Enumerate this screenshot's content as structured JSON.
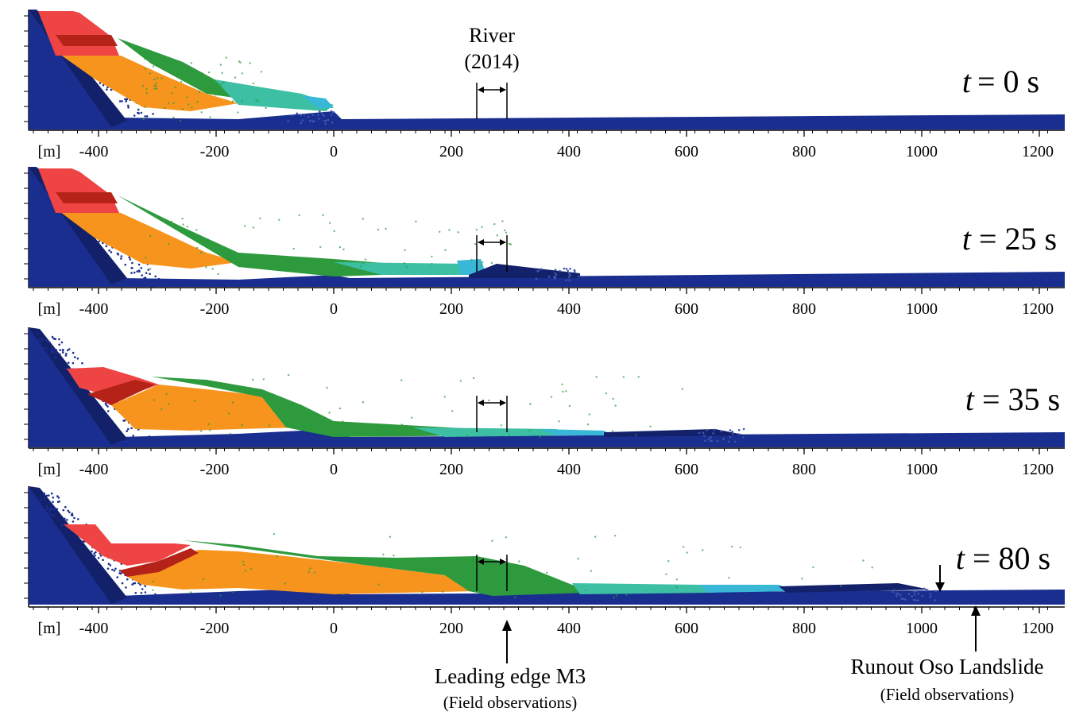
{
  "colors": {
    "base": "#1a2e8f",
    "base_dark": "#13216b",
    "red": "#ee4444",
    "dark_red": "#b52318",
    "red_orange": "#de3c1e",
    "orange": "#f7941d",
    "yellow": "#ecec3a",
    "green": "#2e9a3e",
    "teal": "#3cbfa3",
    "cyan": "#38b8d6",
    "mid_blue": "#3d55b0"
  },
  "axis": {
    "unit_label": "[m]",
    "ticks": [
      "-400",
      "-200",
      "0",
      "200",
      "400",
      "600",
      "800",
      "1000",
      "1200"
    ]
  },
  "panels": [
    {
      "time_label": "t",
      "time_value": "= 0 s"
    },
    {
      "time_label": "t",
      "time_value": "= 25 s"
    },
    {
      "time_label": "t",
      "time_value": "= 35 s"
    },
    {
      "time_label": "t",
      "time_value": "= 80 s"
    }
  ],
  "annotations": {
    "river_label": "River",
    "river_year": "(2014)",
    "leading_edge_label": "Leading  edge M3",
    "leading_edge_sub": "(Field observations)",
    "runout_label": "Runout Oso Landslide",
    "runout_sub": "(Field observations)"
  }
}
